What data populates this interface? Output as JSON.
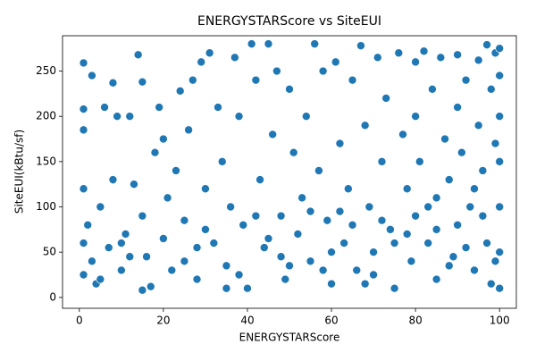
{
  "chart_data": {
    "type": "scatter",
    "title": "ENERGYSTARScore vs SiteEUI",
    "x_label": "ENERGYSTARScore",
    "y_label": "SiteEUI(kBtu/sf)",
    "color": "#1f77b4",
    "xlim": [
      -4,
      104
    ],
    "ylim": [
      -12,
      289
    ],
    "xticks": [
      0,
      20,
      40,
      60,
      80,
      100
    ],
    "yticks": [
      0,
      50,
      100,
      150,
      200,
      250
    ],
    "x": [
      1,
      1,
      1,
      1,
      1,
      1,
      2,
      3,
      3,
      4,
      5,
      6,
      7,
      8,
      8,
      9,
      10,
      11,
      12,
      13,
      14,
      15,
      15,
      16,
      17,
      18,
      19,
      20,
      20,
      21,
      22,
      23,
      24,
      25,
      26,
      27,
      28,
      29,
      30,
      31,
      32,
      33,
      34,
      35,
      36,
      37,
      38,
      39,
      40,
      41,
      42,
      43,
      44,
      45,
      46,
      47,
      48,
      49,
      50,
      51,
      52,
      53,
      54,
      55,
      56,
      57,
      58,
      59,
      60,
      61,
      62,
      63,
      64,
      65,
      66,
      67,
      68,
      69,
      70,
      71,
      72,
      73,
      74,
      75,
      76,
      77,
      78,
      79,
      80,
      80,
      80,
      81,
      82,
      83,
      84,
      85,
      85,
      86,
      87,
      88,
      89,
      90,
      90,
      90,
      91,
      92,
      93,
      94,
      95,
      95,
      96,
      97,
      97,
      98,
      98,
      99,
      99,
      100,
      100,
      100,
      100,
      100,
      100,
      100,
      5,
      10,
      15,
      25,
      30,
      35,
      45,
      50,
      55,
      60,
      65,
      70,
      75,
      85,
      92,
      96,
      12,
      28,
      38,
      42,
      48,
      58,
      62,
      68,
      72,
      78,
      83,
      88,
      94,
      99
    ],
    "values": [
      259,
      208,
      185,
      120,
      60,
      25,
      80,
      245,
      40,
      15,
      100,
      210,
      55,
      237,
      130,
      200,
      30,
      70,
      200,
      125,
      268,
      238,
      90,
      45,
      12,
      160,
      210,
      175,
      65,
      110,
      30,
      140,
      228,
      85,
      185,
      240,
      20,
      260,
      120,
      270,
      60,
      210,
      150,
      35,
      100,
      265,
      200,
      80,
      10,
      280,
      240,
      130,
      55,
      280,
      180,
      250,
      90,
      20,
      230,
      160,
      70,
      110,
      200,
      40,
      280,
      140,
      250,
      85,
      15,
      260,
      170,
      60,
      120,
      240,
      30,
      278,
      190,
      100,
      50,
      265,
      150,
      220,
      75,
      10,
      270,
      180,
      120,
      40,
      260,
      200,
      90,
      150,
      272,
      60,
      230,
      110,
      20,
      265,
      175,
      130,
      45,
      268,
      210,
      80,
      160,
      240,
      100,
      30,
      262,
      190,
      140,
      279,
      60,
      230,
      15,
      270,
      170,
      275,
      245,
      200,
      150,
      100,
      50,
      10,
      20,
      60,
      8,
      40,
      75,
      10,
      65,
      35,
      95,
      50,
      80,
      25,
      60,
      75,
      55,
      90,
      45,
      55,
      25,
      90,
      45,
      30,
      95,
      15,
      85,
      70,
      100,
      35,
      120,
      40
    ]
  }
}
